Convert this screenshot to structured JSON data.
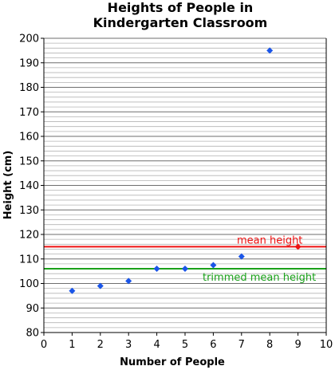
{
  "chart_data": {
    "type": "scatter",
    "title_lines": [
      "Heights of People in",
      "Kindergarten Classroom"
    ],
    "xlabel": "Number of People",
    "ylabel": "Height (cm)",
    "xlim": [
      0,
      10
    ],
    "ylim": [
      80,
      200
    ],
    "x_ticks": [
      0,
      1,
      2,
      3,
      4,
      5,
      6,
      7,
      8,
      9,
      10
    ],
    "y_ticks": [
      80,
      90,
      100,
      110,
      120,
      130,
      140,
      150,
      160,
      170,
      180,
      190,
      200
    ],
    "y_minor_step": 2,
    "grid": "horizontal",
    "series": [
      {
        "color": "#1a55e8",
        "points": [
          {
            "x": 1,
            "y": 97
          },
          {
            "x": 2,
            "y": 99
          },
          {
            "x": 3,
            "y": 101
          },
          {
            "x": 4,
            "y": 106
          },
          {
            "x": 5,
            "y": 106
          },
          {
            "x": 6,
            "y": 107.5
          },
          {
            "x": 7,
            "y": 111
          },
          {
            "x": 8,
            "y": 195
          }
        ]
      },
      {
        "color": "#ee1111",
        "points": [
          {
            "x": 9,
            "y": 115
          }
        ]
      }
    ],
    "reference_lines": [
      {
        "label": "mean height",
        "y": 115,
        "color": "#ee1111"
      },
      {
        "label": "trimmed mean height",
        "y": 106,
        "color": "#1aa11a"
      }
    ]
  }
}
